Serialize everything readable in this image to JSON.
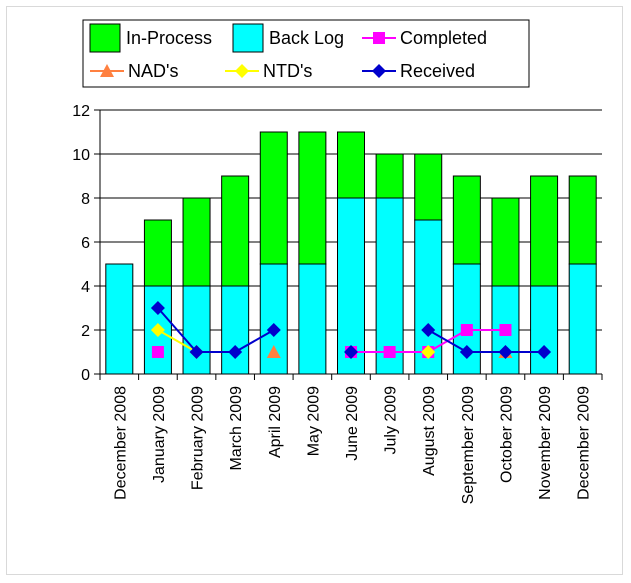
{
  "chart_data": {
    "type": "bar",
    "stacked": true,
    "categories": [
      "December 2008",
      "January 2009",
      "February 2009",
      "March 2009",
      "April 2009",
      "May 2009",
      "June 2009",
      "July 2009",
      "August 2009",
      "September 2009",
      "October 2009",
      "November 2009",
      "December 2009"
    ],
    "ylim": [
      0,
      12
    ],
    "yticks": [
      0,
      2,
      4,
      6,
      8,
      10,
      12
    ],
    "grid": true,
    "legend_position": "top",
    "bar_series": [
      {
        "name": "Back Log",
        "color": "#00FFFF",
        "values": [
          5,
          4,
          4,
          4,
          5,
          5,
          8,
          8,
          7,
          5,
          4,
          4,
          5
        ]
      },
      {
        "name": "In-Process",
        "color": "#00FF00",
        "values": [
          0,
          3,
          4,
          5,
          6,
          6,
          3,
          2,
          3,
          4,
          4,
          5,
          4
        ]
      }
    ],
    "line_series": [
      {
        "name": "Completed",
        "color": "#FF00FF",
        "marker": "square",
        "values": [
          null,
          1,
          null,
          null,
          null,
          null,
          1,
          1,
          1,
          2,
          2,
          null,
          null
        ]
      },
      {
        "name": "NAD's",
        "color": "#FF8040",
        "marker": "triangle",
        "values": [
          null,
          null,
          null,
          null,
          1,
          null,
          null,
          null,
          null,
          null,
          1,
          null,
          null
        ]
      },
      {
        "name": "NTD's",
        "color": "#FFFF00",
        "marker": "diamond",
        "values": [
          null,
          2,
          1,
          null,
          null,
          null,
          null,
          null,
          1,
          null,
          null,
          null,
          null
        ]
      },
      {
        "name": "Received",
        "color": "#0000CC",
        "marker": "diamond",
        "values": [
          null,
          3,
          1,
          1,
          2,
          null,
          1,
          null,
          2,
          1,
          1,
          1,
          null
        ]
      }
    ],
    "legend": [
      "In-Process",
      "Back Log",
      "Completed",
      "NAD's",
      "NTD's",
      "Received"
    ]
  }
}
